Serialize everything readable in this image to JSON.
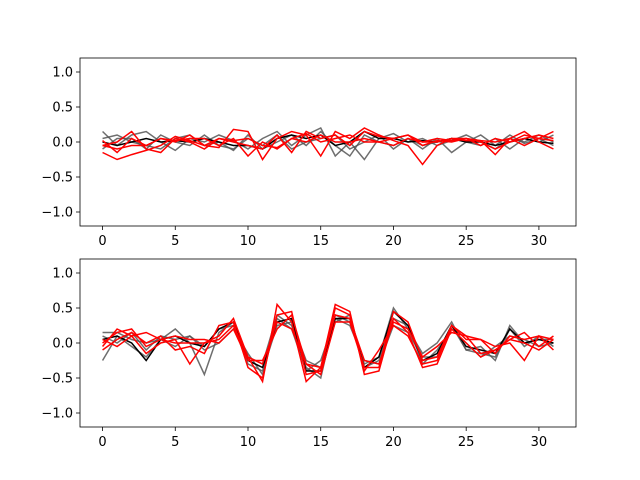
{
  "chart_data": [
    {
      "type": "line",
      "title": "",
      "xlabel": "",
      "ylabel": "",
      "xlim": [
        -1.55,
        32.55
      ],
      "ylim": [
        -1.2,
        1.2
      ],
      "xticks": [
        0,
        5,
        10,
        15,
        20,
        25,
        30
      ],
      "xtick_labels": [
        "0",
        "5",
        "10",
        "15",
        "20",
        "25",
        "30"
      ],
      "yticks": [
        -1.0,
        -0.5,
        0.0,
        0.5,
        1.0
      ],
      "ytick_labels": [
        "−1.0",
        "−0.5",
        "0.0",
        "0.5",
        "1.0"
      ],
      "grid": false,
      "colors": {
        "gray": "#555555",
        "black": "#000000",
        "red": "#ff0000"
      },
      "x": [
        0,
        1,
        2,
        3,
        4,
        5,
        6,
        7,
        8,
        9,
        10,
        11,
        12,
        13,
        14,
        15,
        16,
        17,
        18,
        19,
        20,
        21,
        22,
        23,
        24,
        25,
        26,
        27,
        28,
        29,
        30,
        31
      ],
      "series": [
        {
          "color": "#555555",
          "values": [
            0.15,
            -0.05,
            0.1,
            0.15,
            0.0,
            -0.12,
            0.05,
            0.0,
            0.1,
            0.02,
            -0.1,
            0.05,
            0.15,
            -0.05,
            0.1,
            0.2,
            -0.2,
            0.0,
            -0.25,
            0.05,
            0.12,
            0.0,
            0.05,
            -0.05,
            0.02,
            0.1,
            0.0,
            -0.1,
            0.05,
            0.0,
            0.1,
            0.0
          ]
        },
        {
          "color": "#555555",
          "values": [
            0.05,
            0.1,
            0.0,
            -0.05,
            -0.1,
            0.05,
            0.1,
            -0.05,
            0.0,
            -0.12,
            0.1,
            -0.1,
            0.0,
            0.1,
            -0.05,
            0.15,
            -0.05,
            -0.2,
            0.1,
            0.0,
            -0.05,
            0.05,
            -0.1,
            0.05,
            -0.15,
            0.0,
            0.1,
            -0.05,
            0.1,
            -0.02,
            0.05,
            -0.05
          ]
        },
        {
          "color": "#555555",
          "values": [
            -0.1,
            0.05,
            0.05,
            -0.1,
            0.1,
            0.0,
            -0.05,
            0.1,
            -0.05,
            -0.1,
            0.05,
            -0.05,
            0.1,
            -0.1,
            0.0,
            0.05,
            0.1,
            -0.1,
            0.0,
            0.1,
            -0.1,
            0.05,
            -0.05,
            0.0,
            0.05,
            0.0,
            -0.05,
            0.05,
            -0.1,
            0.05,
            0.0,
            0.1
          ]
        },
        {
          "color": "#000000",
          "values": [
            0.0,
            -0.05,
            0.0,
            0.05,
            0.0,
            0.02,
            0.0,
            0.05,
            0.0,
            -0.05,
            -0.05,
            -0.1,
            0.05,
            0.1,
            0.05,
            0.1,
            -0.05,
            0.0,
            0.15,
            0.05,
            0.05,
            0.0,
            0.02,
            0.0,
            0.05,
            0.0,
            0.0,
            -0.05,
            0.0,
            0.05,
            0.0,
            -0.02
          ]
        },
        {
          "color": "#ff0000",
          "values": [
            -0.15,
            -0.25,
            -0.18,
            -0.12,
            -0.05,
            0.08,
            0.02,
            -0.05,
            -0.08,
            0.18,
            0.15,
            -0.25,
            0.05,
            0.15,
            0.1,
            -0.2,
            0.15,
            0.05,
            0.2,
            0.1,
            0.02,
            -0.05,
            -0.32,
            -0.05,
            0.05,
            0.02,
            0.02,
            -0.18,
            0.05,
            0.15,
            0.0,
            -0.1
          ]
        },
        {
          "color": "#ff0000",
          "values": [
            -0.05,
            0.0,
            0.15,
            -0.1,
            -0.15,
            0.05,
            0.0,
            -0.1,
            0.05,
            0.0,
            -0.05,
            -0.1,
            0.1,
            -0.15,
            0.15,
            0.05,
            0.1,
            -0.05,
            0.15,
            0.08,
            0.05,
            0.1,
            0.0,
            0.0,
            0.05,
            0.05,
            -0.05,
            0.05,
            0.0,
            0.05,
            0.1,
            0.05
          ]
        },
        {
          "color": "#ff0000",
          "values": [
            0.02,
            -0.15,
            0.05,
            -0.05,
            0.05,
            0.02,
            0.05,
            0.05,
            -0.05,
            0.05,
            -0.2,
            0.0,
            -0.1,
            0.05,
            0.0,
            0.1,
            0.0,
            0.0,
            0.05,
            0.0,
            0.05,
            0.1,
            -0.05,
            0.02,
            0.0,
            0.05,
            0.0,
            -0.1,
            0.0,
            0.1,
            0.05,
            0.02
          ]
        },
        {
          "color": "#ff0000",
          "values": [
            -0.05,
            -0.1,
            -0.05,
            -0.05,
            0.05,
            0.0,
            0.1,
            -0.05,
            0.05,
            0.02,
            0.05,
            -0.05,
            -0.08,
            0.05,
            0.12,
            0.0,
            0.05,
            0.1,
            0.0,
            0.0,
            -0.05,
            0.05,
            0.0,
            0.05,
            0.02,
            0.05,
            0.02,
            0.0,
            0.05,
            -0.05,
            0.05,
            0.15
          ]
        }
      ]
    },
    {
      "type": "line",
      "title": "",
      "xlabel": "",
      "ylabel": "",
      "xlim": [
        -1.55,
        32.55
      ],
      "ylim": [
        -1.2,
        1.2
      ],
      "xticks": [
        0,
        5,
        10,
        15,
        20,
        25,
        30
      ],
      "xtick_labels": [
        "0",
        "5",
        "10",
        "15",
        "20",
        "25",
        "30"
      ],
      "yticks": [
        -1.0,
        -0.5,
        0.0,
        0.5,
        1.0
      ],
      "ytick_labels": [
        "−1.0",
        "−0.5",
        "0.0",
        "0.5",
        "1.0"
      ],
      "grid": false,
      "colors": {
        "gray": "#555555",
        "black": "#000000",
        "red": "#ff0000"
      },
      "x": [
        0,
        1,
        2,
        3,
        4,
        5,
        6,
        7,
        8,
        9,
        10,
        11,
        12,
        13,
        14,
        15,
        16,
        17,
        18,
        19,
        20,
        21,
        22,
        23,
        24,
        25,
        26,
        27,
        28,
        29,
        30,
        31
      ],
      "series": [
        {
          "color": "#555555",
          "values": [
            -0.25,
            0.1,
            -0.05,
            -0.2,
            0.05,
            0.2,
            0.0,
            -0.45,
            0.15,
            0.3,
            -0.2,
            -0.3,
            0.4,
            0.25,
            -0.35,
            -0.5,
            0.4,
            0.3,
            -0.3,
            -0.2,
            0.5,
            0.2,
            -0.15,
            0.0,
            0.3,
            -0.1,
            -0.05,
            -0.25,
            0.25,
            0.0,
            0.05,
            0.05
          ]
        },
        {
          "color": "#555555",
          "values": [
            0.1,
            0.0,
            0.15,
            -0.1,
            0.1,
            0.05,
            0.1,
            -0.05,
            0.2,
            0.25,
            -0.3,
            -0.4,
            0.25,
            0.3,
            -0.25,
            -0.35,
            0.3,
            0.4,
            -0.35,
            -0.25,
            0.35,
            0.25,
            -0.3,
            -0.1,
            0.2,
            0.0,
            -0.2,
            -0.05,
            0.1,
            0.05,
            -0.05,
            0.0
          ]
        },
        {
          "color": "#555555",
          "values": [
            0.15,
            0.15,
            0.05,
            0.0,
            0.05,
            -0.05,
            0.1,
            -0.1,
            0.0,
            0.2,
            -0.15,
            -0.45,
            0.35,
            0.2,
            -0.4,
            -0.25,
            0.35,
            0.25,
            -0.25,
            -0.3,
            0.25,
            0.15,
            -0.2,
            -0.2,
            0.25,
            -0.1,
            -0.15,
            -0.2,
            0.2,
            -0.05,
            0.1,
            -0.05
          ]
        },
        {
          "color": "#000000",
          "values": [
            0.05,
            0.1,
            0.0,
            -0.25,
            0.05,
            0.1,
            0.0,
            -0.05,
            0.2,
            0.3,
            -0.25,
            -0.35,
            0.3,
            0.35,
            -0.4,
            -0.4,
            0.35,
            0.35,
            -0.35,
            -0.2,
            0.45,
            0.25,
            -0.25,
            -0.15,
            0.25,
            -0.05,
            -0.1,
            -0.15,
            0.2,
            0.0,
            0.05,
            0.0
          ]
        },
        {
          "color": "#ff0000",
          "values": [
            -0.05,
            0.2,
            0.1,
            -0.15,
            0.0,
            0.05,
            -0.3,
            0.0,
            0.1,
            0.35,
            -0.2,
            -0.55,
            0.55,
            0.3,
            -0.55,
            -0.35,
            0.55,
            0.45,
            -0.45,
            -0.4,
            0.35,
            0.15,
            -0.35,
            -0.3,
            0.2,
            0.0,
            -0.2,
            -0.1,
            0.05,
            0.15,
            -0.05,
            0.1
          ]
        },
        {
          "color": "#ff0000",
          "values": [
            -0.1,
            0.05,
            0.15,
            0.0,
            0.1,
            -0.1,
            -0.05,
            -0.15,
            0.25,
            0.3,
            -0.35,
            -0.5,
            0.4,
            0.45,
            -0.45,
            -0.4,
            0.5,
            0.4,
            -0.4,
            -0.1,
            0.25,
            0.1,
            -0.3,
            -0.25,
            0.25,
            0.05,
            0.05,
            -0.05,
            0.0,
            -0.25,
            0.1,
            -0.1
          ]
        },
        {
          "color": "#ff0000",
          "values": [
            0.0,
            0.15,
            0.2,
            -0.05,
            0.05,
            0.0,
            0.0,
            0.0,
            0.05,
            0.25,
            -0.2,
            -0.3,
            0.3,
            0.2,
            -0.3,
            -0.35,
            0.4,
            0.35,
            -0.25,
            -0.3,
            0.3,
            0.2,
            -0.2,
            -0.05,
            0.15,
            0.1,
            -0.15,
            -0.1,
            0.05,
            0.0,
            -0.1,
            0.05
          ]
        },
        {
          "color": "#ff0000",
          "values": [
            0.05,
            -0.05,
            0.1,
            0.15,
            0.05,
            0.1,
            0.05,
            0.05,
            0.0,
            0.2,
            -0.25,
            -0.25,
            0.2,
            0.4,
            -0.3,
            -0.45,
            0.3,
            0.3,
            -0.35,
            -0.35,
            0.45,
            0.3,
            -0.25,
            -0.2,
            0.25,
            0.1,
            0.05,
            -0.15,
            0.1,
            0.05,
            0.1,
            0.05
          ]
        }
      ]
    }
  ]
}
